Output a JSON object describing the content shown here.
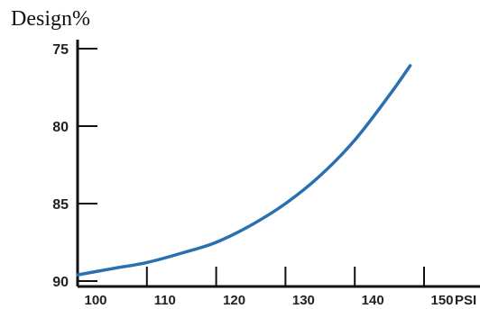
{
  "chart_data": {
    "type": "line",
    "title": "",
    "ylabel": "Design%",
    "xlabel": "PSI",
    "xlim": [
      100,
      155
    ],
    "ylim": [
      90,
      75
    ],
    "y_inverted": true,
    "x_ticks": [
      "100",
      "110",
      "120",
      "130",
      "140",
      "150"
    ],
    "y_ticks": [
      "75",
      "80",
      "85",
      "90"
    ],
    "grid": false,
    "series": [
      {
        "color": "#2a6fb0",
        "x": [
          100,
          105,
          110,
          115,
          120,
          125,
          130,
          135,
          140,
          145,
          148
        ],
        "y": [
          89.6,
          89.2,
          88.8,
          88.2,
          87.5,
          86.4,
          85.0,
          83.2,
          80.9,
          78.0,
          76.1
        ]
      }
    ]
  }
}
